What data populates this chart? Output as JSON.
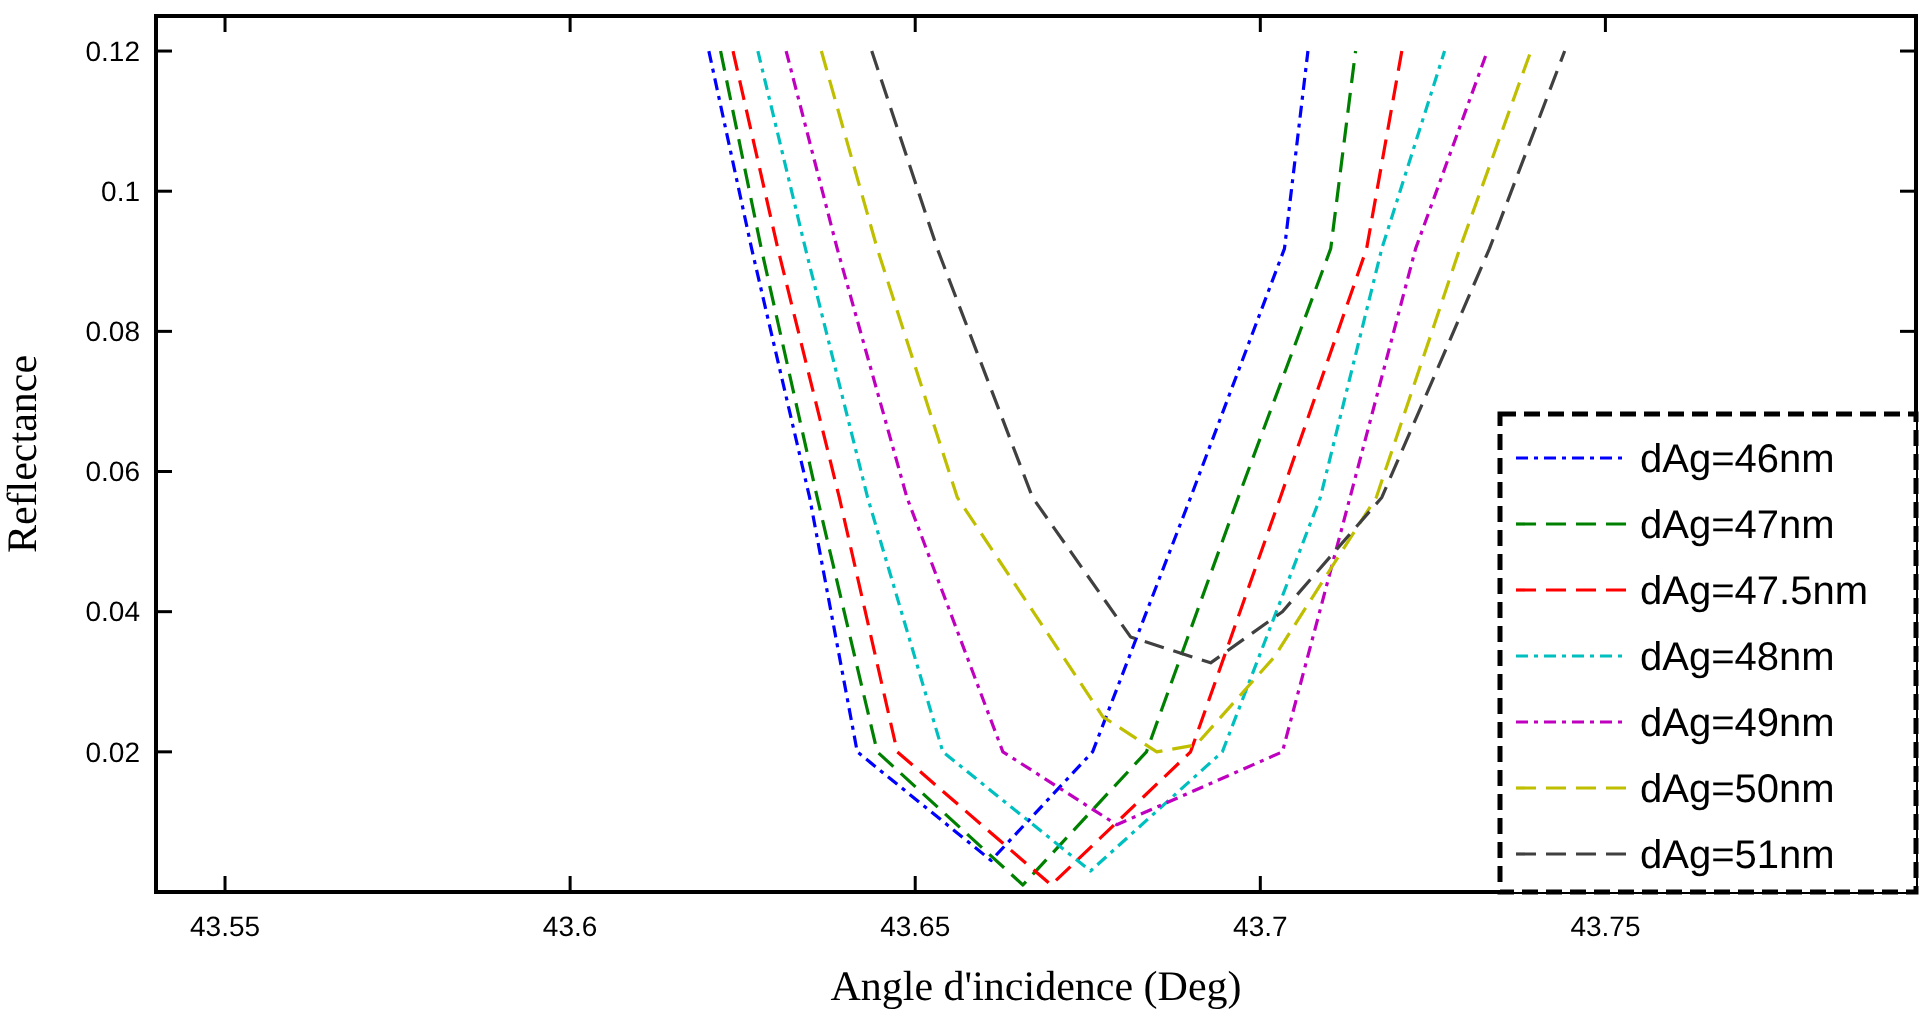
{
  "chart_data": {
    "type": "line",
    "xlabel": "Angle d'incidence (Deg)",
    "ylabel": "Reflectance",
    "xlim": [
      43.54,
      43.795
    ],
    "ylim": [
      0,
      0.125
    ],
    "xticks": [
      43.55,
      43.6,
      43.65,
      43.7,
      43.75
    ],
    "yticks": [
      0.02,
      0.04,
      0.06,
      0.08,
      0.1,
      0.12
    ],
    "grid": false,
    "legend": "bottom right",
    "marker": "none",
    "series": [
      {
        "name": "dAg=46nm",
        "color": "#0000ff",
        "line_style": "dashdot",
        "x": [
          43.6201,
          43.6263,
          43.6347,
          43.6416,
          43.661,
          43.6757,
          43.6899,
          43.7035,
          43.7069
        ],
        "values": [
          0.12,
          0.0918,
          0.0563,
          0.02,
          0.0045,
          0.02,
          0.0563,
          0.0918,
          0.12
        ]
      },
      {
        "name": "dAg=47nm",
        "color": "#008000",
        "line_style": "dashed",
        "x": [
          43.6218,
          43.6277,
          43.6358,
          43.6445,
          43.6656,
          43.6835,
          43.6968,
          43.7102,
          43.7138
        ],
        "values": [
          0.12,
          0.0918,
          0.0563,
          0.02,
          0.001,
          0.02,
          0.0563,
          0.0918,
          0.12
        ]
      },
      {
        "name": "dAg=47.5nm",
        "color": "#ff0000",
        "line_style": "dashed",
        "x": [
          43.6236,
          43.6301,
          43.639,
          43.6474,
          43.6697,
          43.6899,
          43.7029,
          43.7154,
          43.7205
        ],
        "values": [
          0.12,
          0.0918,
          0.0563,
          0.02,
          0.001,
          0.02,
          0.0563,
          0.0918,
          0.12
        ]
      },
      {
        "name": "dAg=48nm",
        "color": "#00bfbf",
        "line_style": "dashdot",
        "x": [
          43.6272,
          43.6341,
          43.6431,
          43.654,
          43.6754,
          43.6945,
          43.7087,
          43.7176,
          43.7267
        ],
        "values": [
          0.12,
          0.0918,
          0.0563,
          0.02,
          0.003,
          0.02,
          0.0563,
          0.0918,
          0.12
        ]
      },
      {
        "name": "dAg=49nm",
        "color": "#bf00bf",
        "line_style": "dashdot",
        "x": [
          43.6313,
          43.6387,
          43.6488,
          43.6627,
          43.6792,
          43.7032,
          43.713,
          43.7225,
          43.7329
        ],
        "values": [
          0.12,
          0.0918,
          0.0563,
          0.02,
          0.0096,
          0.02,
          0.0563,
          0.0918,
          0.12
        ]
      },
      {
        "name": "dAg=50nm",
        "color": "#bfbf00",
        "line_style": "dashed",
        "x": [
          43.6364,
          43.6445,
          43.6561,
          43.6772,
          43.685,
          43.6907,
          43.702,
          43.7168,
          43.7289,
          43.7392
        ],
        "values": [
          0.12,
          0.0918,
          0.0563,
          0.025,
          0.02,
          0.021,
          0.0335,
          0.0563,
          0.0918,
          0.12
        ]
      },
      {
        "name": "dAg=51nm",
        "color": "#404040",
        "line_style": "dashed",
        "x": [
          43.6437,
          43.6532,
          43.667,
          43.6812,
          43.6928,
          43.7032,
          43.7176,
          43.7332,
          43.7441
        ],
        "values": [
          0.12,
          0.0918,
          0.0563,
          0.0364,
          0.0327,
          0.04,
          0.0563,
          0.0918,
          0.12
        ]
      }
    ]
  }
}
